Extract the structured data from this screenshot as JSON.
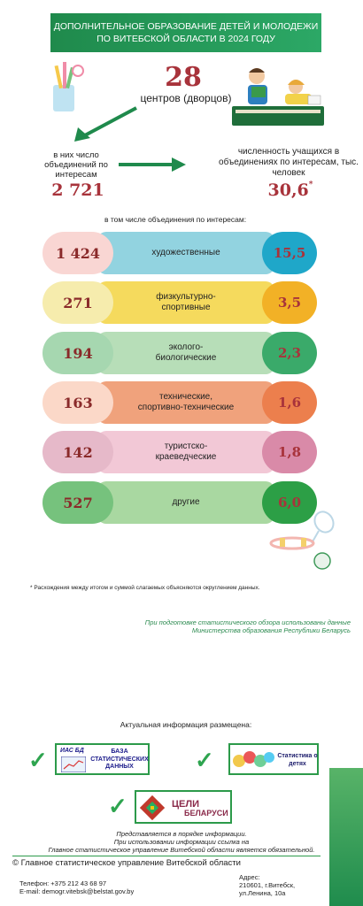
{
  "header": {
    "title_line1": "ДОПОЛНИТЕЛЬНОЕ ОБРАЗОВАНИЕ ДЕТЕЙ И МОЛОДЕЖИ",
    "title_line2": "ПО ВИТЕБСКОЙ ОБЛАСТИ В 2024 ГОДУ"
  },
  "centers": {
    "value": "28",
    "label": "центров (дворцов)"
  },
  "associations": {
    "label": "в них число объединений по интересам",
    "value": "2 721"
  },
  "students": {
    "label": "численность учащихся в объединениях по интересам, тыс. человек",
    "value": "30,6",
    "mark": "*"
  },
  "breakdown_title": "в том числе объединения по интересам:",
  "rows": [
    {
      "count": "1 424",
      "label": "художественные",
      "students": "15,5",
      "colors": {
        "left": "#f9d6d3",
        "mid": "#92d3e0",
        "right": "#1fa7c9"
      }
    },
    {
      "count": "271",
      "label": "физкультурно-\nспортивные",
      "students": "3,5",
      "colors": {
        "left": "#f6ecad",
        "mid": "#f5da5d",
        "right": "#f2b126"
      }
    },
    {
      "count": "194",
      "label": "эколого-\nбиологические",
      "students": "2,3",
      "colors": {
        "left": "#a6d7b0",
        "mid": "#b7deb8",
        "right": "#3aaa6a"
      }
    },
    {
      "count": "163",
      "label": "технические,\nспортивно-технические",
      "students": "1,6",
      "colors": {
        "left": "#fbd8c8",
        "mid": "#f0a27c",
        "right": "#ec7f4d"
      }
    },
    {
      "count": "142",
      "label": "туристско-\nкраеведческие",
      "students": "1,8",
      "colors": {
        "left": "#e6b9c9",
        "mid": "#f2c8d6",
        "right": "#d98aa8"
      }
    },
    {
      "count": "527",
      "label": "другие",
      "students": "6,0",
      "colors": {
        "left": "#76c27d",
        "mid": "#a9d8a1",
        "right": "#2c9f46"
      }
    }
  ],
  "footnote": "* Расхождения между итогом и суммой слагаемых объясняются округлением данных.",
  "source_note_line1": "При подготовке статистического обзора использованы данные",
  "source_note_line2": "Министерства образования Республики Беларусь",
  "info_title": "Актуальная информация размещена:",
  "cards": {
    "ias_tag": "ИАС БД",
    "ias_text": "БАЗА СТАТИСТИЧЕСКИХ ДАННЫХ",
    "children_text": "Статистика о детях",
    "goals_text1": "ЦЕЛИ",
    "goals_text2": "БЕЛАРУСИ"
  },
  "notes": [
    "Представляется в порядке информации.",
    "При использовании информации ссылка на",
    "Главное статистическое управление Витебской области является обязательной."
  ],
  "footer": {
    "copyright": "© Главное статистическое управление Витебской области",
    "phone": "Телефон: +375 212 43 68 97",
    "email": "E-mail: demogr.vitebsk@belstat.gov.by",
    "address_label": "Адрес:",
    "address_line1": "210601, г.Витебск,",
    "address_line2": "ул.Ленина, 10а"
  },
  "colors": {
    "accent_green": "#2c9a4a",
    "number_red": "#a8333b"
  }
}
